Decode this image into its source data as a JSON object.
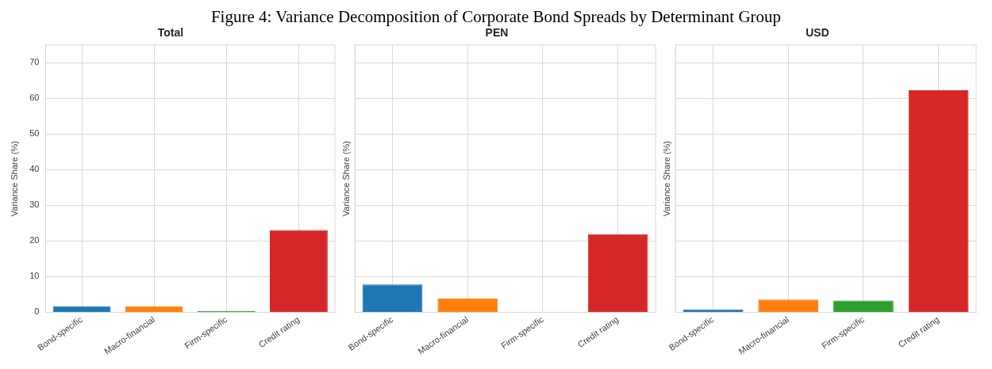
{
  "chart_data": [
    {
      "type": "bar",
      "title": "Total",
      "annotations": [
        "Figure 4: Variance Decomposition of Corporate Bond Spreads by Determinant Group"
      ],
      "ylabel": "Variance Share (%)",
      "categories": [
        "Bond-specific",
        "Macro-financial",
        "Firm-specific",
        "Credit rating"
      ],
      "values": [
        1.7,
        1.7,
        0.3,
        23.1
      ],
      "colors": [
        "#1f77b4",
        "#ff7f0e",
        "#2ca02c",
        "#d62728"
      ],
      "ylim": [
        0,
        75
      ],
      "yticks": [
        0,
        10,
        20,
        30,
        40,
        50,
        60,
        70
      ],
      "grid": true
    },
    {
      "type": "bar",
      "title": "PEN",
      "ylabel": "Variance Share (%)",
      "categories": [
        "Bond-specific",
        "Macro-financial",
        "Firm-specific",
        "Credit rating"
      ],
      "values": [
        7.8,
        3.9,
        0,
        21.9
      ],
      "colors": [
        "#1f77b4",
        "#ff7f0e",
        "#2ca02c",
        "#d62728"
      ],
      "ylim": [
        0,
        75
      ],
      "yticks": [
        0,
        10,
        20,
        30,
        40,
        50,
        60,
        70
      ],
      "grid": true,
      "tick_labels": "x"
    },
    {
      "type": "bar",
      "title": "USD",
      "ylabel": "Variance Share (%)",
      "categories": [
        "Bond-specific",
        "Macro-financial",
        "Firm-specific",
        "Credit rating"
      ],
      "values": [
        0.8,
        3.6,
        3.3,
        62.3
      ],
      "colors": [
        "#1f77b4",
        "#ff7f0e",
        "#2ca02c",
        "#d62728"
      ],
      "ylim": [
        0,
        75
      ],
      "yticks": [
        0,
        10,
        20,
        30,
        40,
        50,
        60,
        70
      ],
      "grid": true,
      "tick_labels": "x"
    }
  ]
}
